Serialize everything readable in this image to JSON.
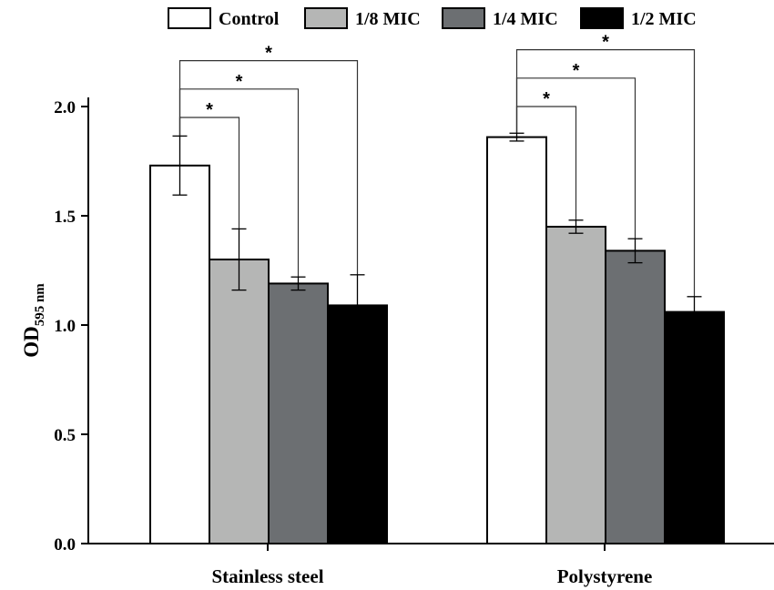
{
  "chart_data": {
    "type": "bar",
    "title": "",
    "ylabel_main": "OD",
    "ylabel_sub": "595 nm",
    "xlabel": "",
    "ylim": [
      0,
      2.0
    ],
    "yticks": [
      "0.0",
      "0.5",
      "1.0",
      "1.5",
      "2.0"
    ],
    "categories": [
      "Stainless steel",
      "Polystyrene"
    ],
    "series": [
      {
        "name": "Control",
        "color": "#ffffff",
        "values": [
          1.73,
          1.86
        ],
        "errors": [
          0.135,
          0.018
        ]
      },
      {
        "name": "1/8 MIC",
        "color": "#b5b6b5",
        "values": [
          1.3,
          1.45
        ],
        "errors": [
          0.14,
          0.03
        ]
      },
      {
        "name": "1/4 MIC",
        "color": "#6c6f72",
        "values": [
          1.19,
          1.34
        ],
        "errors": [
          0.03,
          0.055
        ]
      },
      {
        "name": "1/2 MIC",
        "color": "#000000",
        "values": [
          1.09,
          1.06
        ],
        "errors": [
          0.14,
          0.07
        ]
      }
    ],
    "significance": {
      "marker": "*",
      "comparisons": [
        {
          "category": 0,
          "from_series": 0,
          "to_series": 1,
          "level": 1.95
        },
        {
          "category": 0,
          "from_series": 0,
          "to_series": 2,
          "level": 2.08
        },
        {
          "category": 0,
          "from_series": 0,
          "to_series": 3,
          "level": 2.21
        },
        {
          "category": 1,
          "from_series": 0,
          "to_series": 1,
          "level": 2.0
        },
        {
          "category": 1,
          "from_series": 0,
          "to_series": 2,
          "level": 2.13
        },
        {
          "category": 1,
          "from_series": 0,
          "to_series": 3,
          "level": 2.26
        }
      ]
    },
    "legend_position": "top",
    "grid": false
  }
}
